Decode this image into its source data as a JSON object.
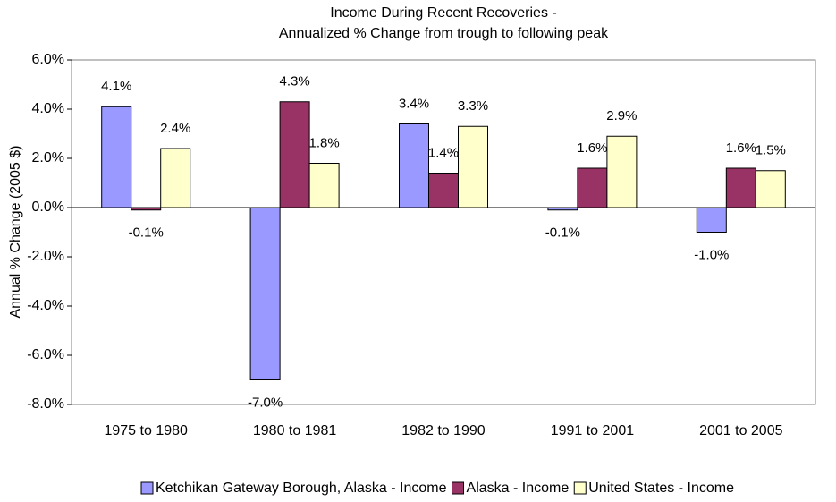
{
  "chart_data": {
    "type": "bar",
    "title": "Income During Recent Recoveries -",
    "subtitle": "Annualized % Change from trough to following peak",
    "y_label": "Annual % Change (2005 $)",
    "categories": [
      "1975 to 1980",
      "1980 to 1981",
      "1982 to 1990",
      "1991 to 2001",
      "2001 to 2005"
    ],
    "series": [
      {
        "name": "Ketchikan Gateway Borough, Alaska - Income",
        "color": "#9999ff",
        "values": [
          4.1,
          -7.0,
          3.4,
          -0.1,
          -1.0
        ],
        "value_labels": [
          "4.1%",
          "-7.0%",
          "3.4%",
          "-0.1%",
          "-1.0%"
        ]
      },
      {
        "name": "Alaska - Income",
        "color": "#993366",
        "values": [
          -0.1,
          4.3,
          1.4,
          1.6,
          1.6
        ],
        "value_labels": [
          "-0.1%",
          "4.3%",
          "1.4%",
          "1.6%",
          "1.6%"
        ]
      },
      {
        "name": "United States - Income",
        "color": "#ffffcc",
        "values": [
          2.4,
          1.8,
          3.3,
          2.9,
          1.5
        ],
        "value_labels": [
          "2.4%",
          "1.8%",
          "3.3%",
          "2.9%",
          "1.5%"
        ]
      }
    ],
    "ylim": [
      -8,
      6
    ],
    "yticks": [
      {
        "value": -8,
        "label": "-8.0%"
      },
      {
        "value": -6,
        "label": "-6.0%"
      },
      {
        "value": -4,
        "label": "-4.0%"
      },
      {
        "value": -2,
        "label": "-2.0%"
      },
      {
        "value": 0,
        "label": "0.0%"
      },
      {
        "value": 2,
        "label": "2.0%"
      },
      {
        "value": 4,
        "label": "4.0%"
      },
      {
        "value": 6,
        "label": "6.0%"
      }
    ],
    "grid": false,
    "legend": "bottom"
  }
}
